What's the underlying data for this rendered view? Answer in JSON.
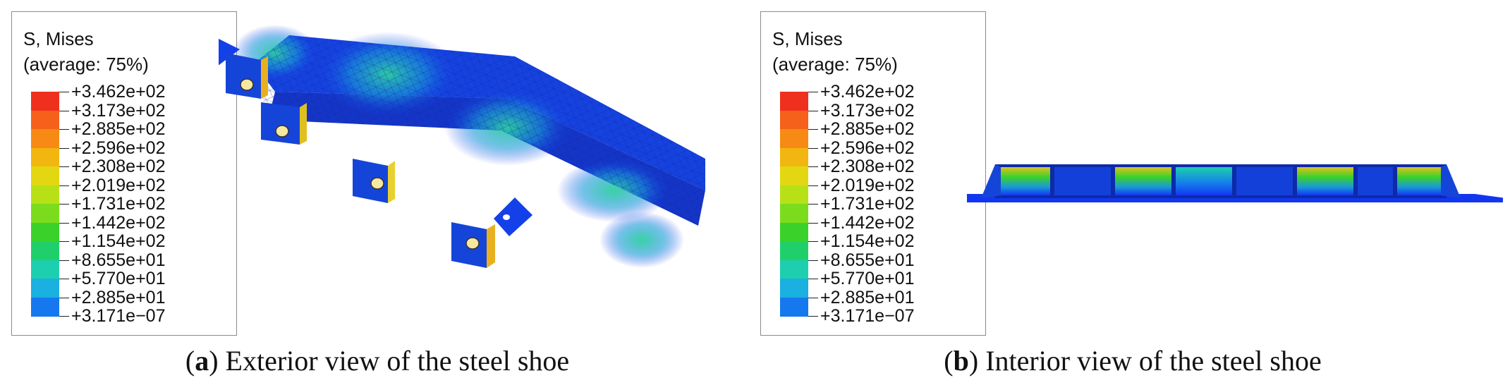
{
  "legend": {
    "title_line1": "S, Mises",
    "title_line2": "(average: 75%)",
    "values": [
      "+3.462e+02",
      "+3.173e+02",
      "+2.885e+02",
      "+2.596e+02",
      "+2.308e+02",
      "+2.019e+02",
      "+1.731e+02",
      "+1.442e+02",
      "+1.154e+02",
      "+8.655e+01",
      "+5.770e+01",
      "+2.885e+01",
      "+3.171e−07"
    ],
    "colors": [
      "#f0301e",
      "#f5601a",
      "#f78a14",
      "#f1b60f",
      "#e3d712",
      "#b8e017",
      "#7bdc1e",
      "#3ad22a",
      "#1fd06a",
      "#1dcfae",
      "#1ab0e0",
      "#1578ef",
      "#1236f0"
    ]
  },
  "panel_a": {
    "letter": "a",
    "caption": "Exterior view of the steel shoe"
  },
  "panel_b": {
    "letter": "b",
    "caption": "Interior view of the steel shoe"
  }
}
